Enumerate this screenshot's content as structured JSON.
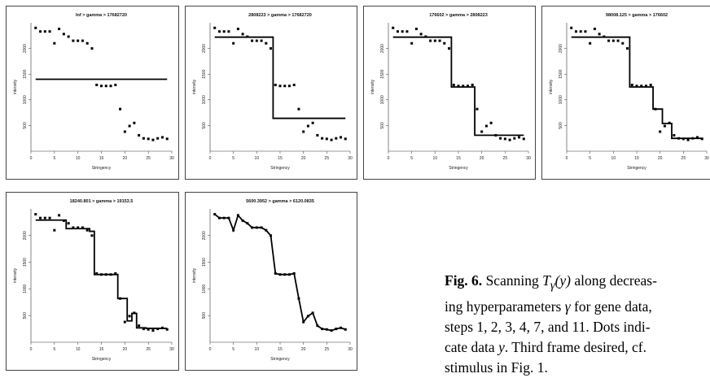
{
  "chart_data": [
    {
      "type": "scatter+step",
      "title": "Inf > gamma > 17682720",
      "xlabel": "Stringency",
      "ylabel": "intensity",
      "xlim": [
        0,
        30
      ],
      "ylim": [
        0,
        2500
      ],
      "xticks": [
        0,
        5,
        10,
        15,
        20,
        25,
        30
      ],
      "yticks": [
        500,
        1000,
        1500,
        2000
      ],
      "fit_x": [
        1,
        29
      ],
      "fit_y": [
        1400,
        1400
      ]
    },
    {
      "type": "scatter+step",
      "title": "2808223 > gamma > 17682720",
      "xlabel": "Stringency",
      "ylabel": "intensity",
      "xlim": [
        0,
        30
      ],
      "ylim": [
        0,
        2500
      ],
      "xticks": [
        0,
        5,
        10,
        15,
        20,
        25,
        30
      ],
      "yticks": [
        500,
        1000,
        1500,
        2000
      ],
      "fit_x": [
        1,
        13.5,
        13.5,
        29
      ],
      "fit_y": [
        2220,
        2220,
        640,
        640
      ]
    },
    {
      "type": "scatter+step",
      "title": "176602 > gamma > 2808223",
      "xlabel": "Stringency",
      "ylabel": "intensity",
      "xlim": [
        0,
        30
      ],
      "ylim": [
        0,
        2500
      ],
      "xticks": [
        0,
        5,
        10,
        15,
        20,
        25,
        30
      ],
      "yticks": [
        500,
        1000,
        1500,
        2000
      ],
      "fit_x": [
        1,
        13.5,
        13.5,
        18.5,
        18.5,
        29
      ],
      "fit_y": [
        2220,
        2220,
        1250,
        1250,
        310,
        310
      ]
    },
    {
      "type": "scatter+step",
      "title": "98008.125 > gamma > 176602",
      "xlabel": "Stringency",
      "ylabel": "intensity",
      "xlim": [
        0,
        30
      ],
      "ylim": [
        0,
        2500
      ],
      "xticks": [
        0,
        5,
        10,
        15,
        20,
        25,
        30
      ],
      "yticks": [
        500,
        1000,
        1500,
        2000
      ],
      "fit_x": [
        1,
        13.5,
        13.5,
        18.5,
        18.5,
        20.5,
        20.5,
        22.5,
        22.5,
        29
      ],
      "fit_y": [
        2220,
        2220,
        1250,
        1250,
        820,
        820,
        540,
        540,
        250,
        250
      ]
    },
    {
      "type": "scatter+step",
      "title": "18240.801 > gamma > 19153.5",
      "xlabel": "Stringency",
      "ylabel": "intensity",
      "xlim": [
        0,
        30
      ],
      "ylim": [
        0,
        2500
      ],
      "xticks": [
        0,
        5,
        10,
        15,
        20,
        25,
        30
      ],
      "yticks": [
        500,
        1000,
        1500,
        2000
      ],
      "fit_x": [
        1,
        7.5,
        7.5,
        12.5,
        12.5,
        13.5,
        13.5,
        18.5,
        18.5,
        20.5,
        20.5,
        21.5,
        21.5,
        22.5,
        22.5,
        24.5,
        24.5,
        29
      ],
      "fit_y": [
        2290,
        2290,
        2130,
        2130,
        2080,
        2080,
        1270,
        1270,
        820,
        820,
        400,
        400,
        540,
        540,
        270,
        270,
        260,
        260
      ]
    },
    {
      "type": "scatter+step",
      "title": "5600.3952 > gamma > 6120.0835",
      "xlabel": "Stringency",
      "ylabel": "intensity",
      "xlim": [
        0,
        30
      ],
      "ylim": [
        0,
        2500
      ],
      "xticks": [
        0,
        5,
        10,
        15,
        20,
        25,
        30
      ],
      "yticks": [
        500,
        1000,
        1500,
        2000
      ],
      "fit_x": [
        1,
        2,
        3,
        4,
        5,
        6,
        7,
        8,
        9,
        10,
        11,
        12,
        13,
        14,
        15,
        16,
        17,
        18,
        19,
        20,
        21,
        22,
        23,
        24,
        25,
        26,
        27,
        28,
        29
      ],
      "fit_y": [
        2400,
        2330,
        2330,
        2330,
        2100,
        2380,
        2280,
        2230,
        2150,
        2150,
        2150,
        2100,
        2000,
        1290,
        1270,
        1270,
        1270,
        1290,
        820,
        380,
        490,
        550,
        310,
        250,
        240,
        220,
        250,
        270,
        240
      ]
    }
  ],
  "points": {
    "x": [
      1,
      2,
      3,
      4,
      5,
      6,
      7,
      8,
      9,
      10,
      11,
      12,
      13,
      14,
      15,
      16,
      17,
      18,
      19,
      20,
      21,
      22,
      23,
      24,
      25,
      26,
      27,
      28,
      29
    ],
    "y": [
      2400,
      2330,
      2330,
      2330,
      2100,
      2380,
      2280,
      2230,
      2150,
      2150,
      2150,
      2100,
      2000,
      1290,
      1270,
      1270,
      1270,
      1290,
      820,
      380,
      490,
      550,
      310,
      250,
      240,
      220,
      250,
      270,
      240
    ]
  },
  "caption": {
    "label": "Fig. 6.",
    "line1a": " Scanning ",
    "line1_math": "T",
    "line1_sub": "γ",
    "line1_math2": "(y)",
    "line1b": " along decreas-",
    "line2a": "ing hyperparameters ",
    "line2_math": "γ",
    "line2b": " for gene data,",
    "line3": "steps 1, 2, 3, 4, 7, and 11. Dots indi-",
    "line4a": "cate data ",
    "line4_math": "y",
    "line4b": ". Third frame desired, cf.",
    "line5": "stimulus in Fig. 1."
  }
}
